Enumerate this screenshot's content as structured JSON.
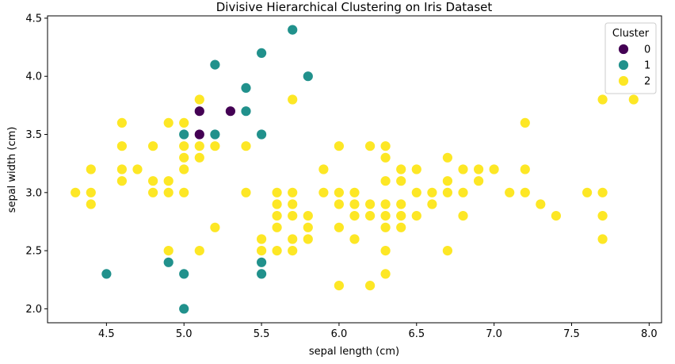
{
  "chart_data": {
    "type": "scatter",
    "title": "Divisive Hierarchical Clustering on Iris Dataset",
    "xlabel": "sepal length (cm)",
    "ylabel": "sepal width (cm)",
    "xlim": [
      4.12,
      8.08
    ],
    "ylim": [
      1.88,
      4.52
    ],
    "xticks": [
      4.5,
      5.0,
      5.5,
      6.0,
      6.5,
      7.0,
      7.5,
      8.0
    ],
    "xtick_labels": [
      "4.5",
      "5.0",
      "5.5",
      "6.0",
      "6.5",
      "7.0",
      "7.5",
      "8.0"
    ],
    "yticks": [
      2.0,
      2.5,
      3.0,
      3.5,
      4.0,
      4.5
    ],
    "ytick_labels": [
      "2.0",
      "2.5",
      "3.0",
      "3.5",
      "4.0",
      "4.5"
    ],
    "grid": false,
    "legend": {
      "title": "Cluster",
      "placement": "top-right"
    },
    "series": [
      {
        "name": "0",
        "color": "#440154",
        "points": [
          [
            5.1,
            3.7
          ],
          [
            5.3,
            3.7
          ],
          [
            5.1,
            3.5
          ]
        ]
      },
      {
        "name": "1",
        "color": "#21918c",
        "points": [
          [
            5.7,
            4.4
          ],
          [
            5.5,
            4.2
          ],
          [
            5.2,
            4.1
          ],
          [
            5.8,
            4.0
          ],
          [
            5.4,
            3.9
          ],
          [
            5.4,
            3.7
          ],
          [
            5.0,
            3.5
          ],
          [
            5.2,
            3.5
          ],
          [
            5.5,
            3.5
          ],
          [
            4.9,
            2.4
          ],
          [
            5.5,
            2.4
          ],
          [
            4.5,
            2.3
          ],
          [
            5.0,
            2.3
          ],
          [
            5.5,
            2.3
          ],
          [
            5.0,
            2.0
          ]
        ]
      },
      {
        "name": "2",
        "color": "#fde725",
        "points": [
          [
            5.1,
            3.8
          ],
          [
            5.7,
            3.8
          ],
          [
            7.7,
            3.8
          ],
          [
            7.9,
            3.8
          ],
          [
            4.6,
            3.6
          ],
          [
            4.9,
            3.6
          ],
          [
            5.0,
            3.6
          ],
          [
            7.2,
            3.6
          ],
          [
            4.6,
            3.4
          ],
          [
            4.8,
            3.4
          ],
          [
            5.0,
            3.4
          ],
          [
            5.1,
            3.4
          ],
          [
            5.2,
            3.4
          ],
          [
            5.4,
            3.4
          ],
          [
            6.0,
            3.4
          ],
          [
            6.2,
            3.4
          ],
          [
            6.3,
            3.4
          ],
          [
            5.0,
            3.3
          ],
          [
            5.1,
            3.3
          ],
          [
            6.3,
            3.3
          ],
          [
            6.7,
            3.3
          ],
          [
            4.4,
            3.2
          ],
          [
            4.6,
            3.2
          ],
          [
            4.7,
            3.2
          ],
          [
            5.0,
            3.2
          ],
          [
            5.9,
            3.2
          ],
          [
            6.4,
            3.2
          ],
          [
            6.5,
            3.2
          ],
          [
            6.8,
            3.2
          ],
          [
            6.9,
            3.2
          ],
          [
            7.0,
            3.2
          ],
          [
            7.2,
            3.2
          ],
          [
            4.6,
            3.1
          ],
          [
            4.8,
            3.1
          ],
          [
            4.9,
            3.1
          ],
          [
            6.3,
            3.1
          ],
          [
            6.4,
            3.1
          ],
          [
            6.7,
            3.1
          ],
          [
            6.9,
            3.1
          ],
          [
            4.3,
            3.0
          ],
          [
            4.4,
            3.0
          ],
          [
            4.8,
            3.0
          ],
          [
            4.9,
            3.0
          ],
          [
            5.0,
            3.0
          ],
          [
            5.4,
            3.0
          ],
          [
            5.6,
            3.0
          ],
          [
            5.7,
            3.0
          ],
          [
            5.9,
            3.0
          ],
          [
            6.0,
            3.0
          ],
          [
            6.1,
            3.0
          ],
          [
            6.5,
            3.0
          ],
          [
            6.6,
            3.0
          ],
          [
            6.7,
            3.0
          ],
          [
            6.8,
            3.0
          ],
          [
            7.1,
            3.0
          ],
          [
            7.2,
            3.0
          ],
          [
            7.6,
            3.0
          ],
          [
            7.7,
            3.0
          ],
          [
            4.4,
            2.9
          ],
          [
            5.6,
            2.9
          ],
          [
            5.7,
            2.9
          ],
          [
            6.0,
            2.9
          ],
          [
            6.1,
            2.9
          ],
          [
            6.2,
            2.9
          ],
          [
            6.3,
            2.9
          ],
          [
            6.4,
            2.9
          ],
          [
            6.6,
            2.9
          ],
          [
            7.3,
            2.9
          ],
          [
            5.6,
            2.8
          ],
          [
            5.7,
            2.8
          ],
          [
            5.8,
            2.8
          ],
          [
            6.1,
            2.8
          ],
          [
            6.2,
            2.8
          ],
          [
            6.3,
            2.8
          ],
          [
            6.4,
            2.8
          ],
          [
            6.5,
            2.8
          ],
          [
            6.8,
            2.8
          ],
          [
            7.4,
            2.8
          ],
          [
            7.7,
            2.8
          ],
          [
            5.2,
            2.7
          ],
          [
            5.6,
            2.7
          ],
          [
            5.8,
            2.7
          ],
          [
            6.0,
            2.7
          ],
          [
            6.3,
            2.7
          ],
          [
            6.4,
            2.7
          ],
          [
            5.5,
            2.6
          ],
          [
            5.7,
            2.6
          ],
          [
            5.8,
            2.6
          ],
          [
            6.1,
            2.6
          ],
          [
            7.7,
            2.6
          ],
          [
            4.9,
            2.5
          ],
          [
            5.1,
            2.5
          ],
          [
            5.5,
            2.5
          ],
          [
            5.6,
            2.5
          ],
          [
            5.7,
            2.5
          ],
          [
            6.3,
            2.5
          ],
          [
            6.7,
            2.5
          ],
          [
            6.3,
            2.3
          ],
          [
            6.0,
            2.2
          ],
          [
            6.2,
            2.2
          ]
        ]
      }
    ]
  }
}
